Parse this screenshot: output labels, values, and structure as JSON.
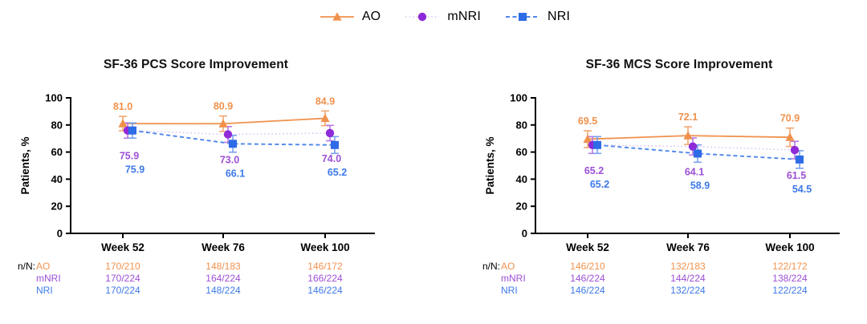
{
  "legend": {
    "items": [
      {
        "label": "AO"
      },
      {
        "label": "mNRI"
      },
      {
        "label": "NRI"
      }
    ]
  },
  "chart_data": [
    {
      "type": "line",
      "title": "SF-36 PCS Score Improvement",
      "ylabel": "Patients, %",
      "xlabel": "",
      "ylim": [
        0,
        100
      ],
      "yticks": [
        0,
        20,
        40,
        60,
        80,
        100
      ],
      "grid": false,
      "legend_position": "top-center",
      "categories": [
        "Week 52",
        "Week 76",
        "Week 100"
      ],
      "table_label": "n/N:",
      "series": [
        {
          "name": "AO",
          "marker": "triangle",
          "line": "solid",
          "color": "#F0914C",
          "line_color": "#F0914C",
          "err_color": "#F3A76F",
          "label_color": "#F0914C",
          "values": [
            81.0,
            80.9,
            84.9
          ],
          "err": [
            5.3,
            5.7,
            5.4
          ],
          "n_over_N": [
            "170/210",
            "148/183",
            "146/172"
          ]
        },
        {
          "name": "mNRI",
          "marker": "circle",
          "line": "dotted",
          "color": "#8E2BD8",
          "line_color": "#DFCBF2",
          "err_color": "#B37BE4",
          "label_color": "#9C4FD6",
          "values": [
            75.9,
            73.0,
            74.0
          ],
          "err": [
            5.6,
            5.8,
            5.7
          ],
          "n_over_N": [
            "170/224",
            "164/224",
            "166/224"
          ]
        },
        {
          "name": "NRI",
          "marker": "square",
          "line": "dashed",
          "color": "#2E6BE6",
          "line_color": "#4D86EC",
          "err_color": "#7AA0F0",
          "label_color": "#3D79E8",
          "values": [
            75.9,
            66.1,
            65.2
          ],
          "err": [
            5.6,
            6.2,
            6.2
          ],
          "n_over_N": [
            "170/224",
            "148/224",
            "146/224"
          ]
        }
      ]
    },
    {
      "type": "line",
      "title": "SF-36 MCS Score Improvement",
      "ylabel": "Patients, %",
      "xlabel": "",
      "ylim": [
        0,
        100
      ],
      "yticks": [
        0,
        20,
        40,
        60,
        80,
        100
      ],
      "grid": false,
      "legend_position": "top-center",
      "categories": [
        "Week 52",
        "Week 76",
        "Week 100"
      ],
      "table_label": "n/N:",
      "series": [
        {
          "name": "AO",
          "marker": "triangle",
          "line": "solid",
          "color": "#F0914C",
          "line_color": "#F0914C",
          "err_color": "#F3A76F",
          "label_color": "#F0914C",
          "values": [
            69.5,
            72.1,
            70.9
          ],
          "err": [
            6.2,
            6.5,
            6.8
          ],
          "n_over_N": [
            "146/210",
            "132/183",
            "122/172"
          ]
        },
        {
          "name": "mNRI",
          "marker": "circle",
          "line": "dotted",
          "color": "#8E2BD8",
          "line_color": "#DFCBF2",
          "err_color": "#B37BE4",
          "label_color": "#9C4FD6",
          "values": [
            65.2,
            64.1,
            61.5
          ],
          "err": [
            6.2,
            6.3,
            6.4
          ],
          "n_over_N": [
            "146/224",
            "144/224",
            "138/224"
          ]
        },
        {
          "name": "NRI",
          "marker": "square",
          "line": "dashed",
          "color": "#2E6BE6",
          "line_color": "#4D86EC",
          "err_color": "#7AA0F0",
          "label_color": "#3D79E8",
          "values": [
            65.2,
            58.9,
            54.5
          ],
          "err": [
            6.2,
            6.4,
            6.5
          ],
          "n_over_N": [
            "146/224",
            "132/224",
            "122/224"
          ]
        }
      ]
    }
  ]
}
